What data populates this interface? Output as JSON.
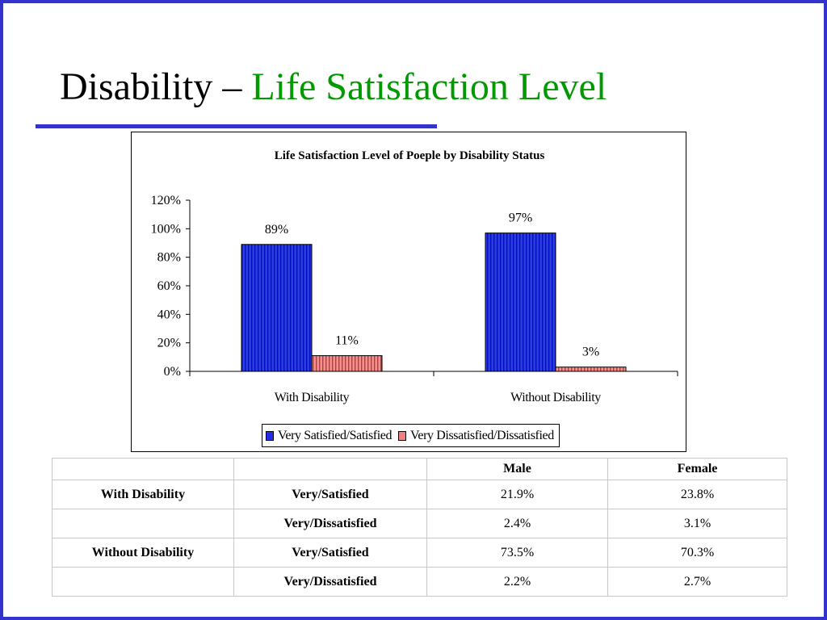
{
  "slide": {
    "title_main": "Disability – ",
    "title_accent": "Life Satisfaction Level",
    "colors": {
      "border": "#3333cc",
      "accent": "#009900",
      "rule": "#3333cc"
    }
  },
  "chart_data": {
    "type": "bar",
    "title": "Life Satisfaction Level of Poeple by Disability Status",
    "categories": [
      "With Disability",
      "Without Disability"
    ],
    "series": [
      {
        "name": "Very Satisfied/Satisfied",
        "values": [
          89,
          97
        ],
        "labels": [
          "89%",
          "97%"
        ],
        "color": "#1f2fe8"
      },
      {
        "name": "Very Dissatisfied/Dissatisfied",
        "values": [
          11,
          3
        ],
        "labels": [
          "11%",
          "3%"
        ],
        "color": "#f08080"
      }
    ],
    "yticks": [
      "0%",
      "20%",
      "40%",
      "60%",
      "80%",
      "100%",
      "120%"
    ],
    "ylim": [
      0,
      120
    ],
    "xlabel": "",
    "ylabel": "",
    "grid": false,
    "legend": "bottom"
  },
  "table": {
    "header": [
      "",
      "",
      "Male",
      "Female"
    ],
    "rows": [
      [
        "With Disability",
        "Very/Satisfied",
        "21.9%",
        "23.8%"
      ],
      [
        "",
        "Very/Dissatisfied",
        "2.4%",
        "3.1%"
      ],
      [
        "Without Disability",
        "Very/Satisfied",
        "73.5%",
        "70.3%"
      ],
      [
        "",
        "Very/Dissatisfied",
        "2.2%",
        "2.7%"
      ]
    ]
  }
}
